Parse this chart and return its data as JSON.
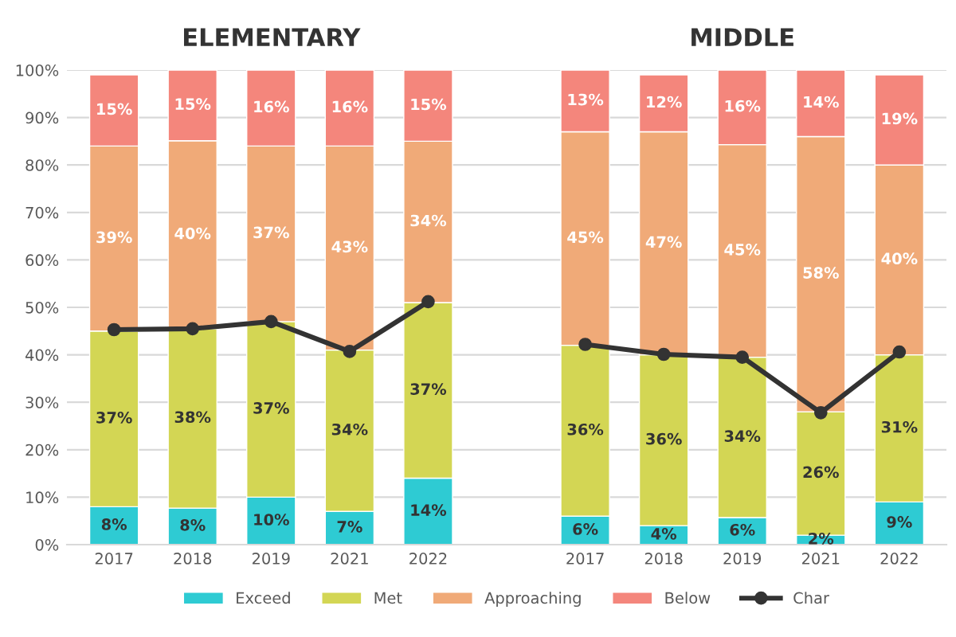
{
  "chart_data": {
    "type": "bar",
    "stacked": true,
    "annotations": [
      "ELEMENTARY",
      "MIDDLE"
    ],
    "categories": [
      "2017",
      "2018",
      "2019",
      "2021",
      "2022",
      null,
      "2017",
      "2018",
      "2019",
      "2021",
      "2022"
    ],
    "series": [
      {
        "name": "Exceed",
        "color": "#2ecbd3",
        "values": [
          8,
          7.7,
          10,
          7,
          14,
          null,
          6,
          4,
          5.7,
          2,
          9
        ],
        "value_labels": [
          "8%",
          "8%",
          "10%",
          "7%",
          "14%",
          null,
          "6%",
          "4%",
          "6%",
          "2%",
          "9%"
        ]
      },
      {
        "name": "Met",
        "color": "#d3d654",
        "values": [
          37,
          37.8,
          37,
          34,
          37,
          null,
          36,
          36,
          33.8,
          26,
          31
        ],
        "value_labels": [
          "37%",
          "38%",
          "37%",
          "34%",
          "37%",
          null,
          "36%",
          "36%",
          "34%",
          "26%",
          "31%"
        ]
      },
      {
        "name": "Approaching",
        "color": "#f0aa78",
        "values": [
          39,
          39.6,
          37,
          43,
          34,
          null,
          45,
          47,
          44.8,
          58,
          40
        ],
        "value_labels": [
          "39%",
          "40%",
          "37%",
          "43%",
          "34%",
          null,
          "45%",
          "47%",
          "45%",
          "58%",
          "40%"
        ]
      },
      {
        "name": "Below",
        "color": "#f4867c",
        "values": [
          15,
          14.9,
          16,
          16,
          15,
          null,
          13,
          12,
          15.7,
          14,
          19
        ],
        "value_labels": [
          "15%",
          "15%",
          "16%",
          "16%",
          "15%",
          null,
          "13%",
          "12%",
          "16%",
          "14%",
          "19%"
        ]
      },
      {
        "name": "Char",
        "type": "line",
        "color": "#333333",
        "marker": "circle",
        "values": [
          45.3,
          45.5,
          47,
          40.7,
          51.2,
          null,
          42.2,
          40.1,
          39.5,
          27.8,
          40.6
        ]
      }
    ],
    "ylim": [
      0,
      100
    ],
    "yticks": [
      {
        "value": 0,
        "label": "0%"
      },
      {
        "value": 10,
        "label": "10%"
      },
      {
        "value": 20,
        "label": "20%"
      },
      {
        "value": 30,
        "label": "30%"
      },
      {
        "value": 40,
        "label": "40%"
      },
      {
        "value": 50,
        "label": "50%"
      },
      {
        "value": 60,
        "label": "60%"
      },
      {
        "value": 70,
        "label": "70%"
      },
      {
        "value": 80,
        "label": "80%"
      },
      {
        "value": 90,
        "label": "90%"
      },
      {
        "value": 100,
        "label": "100%"
      }
    ],
    "grid": "y",
    "legend": "bottom"
  }
}
